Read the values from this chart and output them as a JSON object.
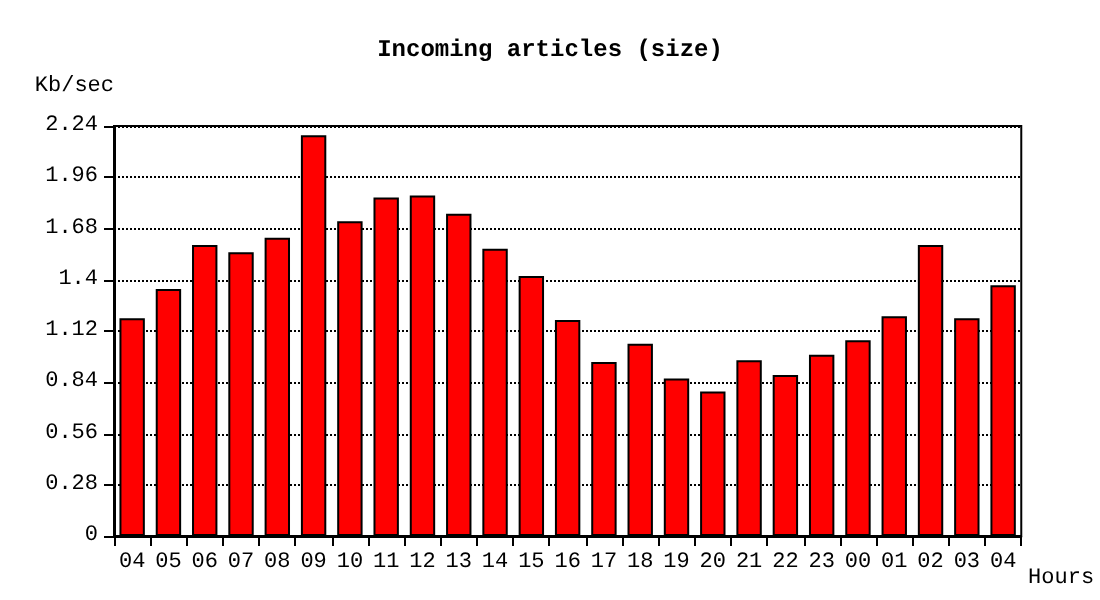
{
  "chart_data": {
    "type": "bar",
    "title": "Incoming articles (size)",
    "ylabel": "Kb/sec",
    "xlabel": "Hours",
    "categories": [
      "04",
      "05",
      "06",
      "07",
      "08",
      "09",
      "10",
      "11",
      "12",
      "13",
      "14",
      "15",
      "16",
      "17",
      "18",
      "19",
      "20",
      "21",
      "22",
      "23",
      "00",
      "01",
      "02",
      "03",
      "04"
    ],
    "series": [
      {
        "color": "#ff0000",
        "values": [
          1.19,
          1.35,
          1.59,
          1.55,
          1.63,
          2.19,
          1.72,
          1.85,
          1.86,
          1.76,
          1.57,
          1.42,
          1.18,
          0.95,
          1.05,
          0.86,
          0.79,
          0.96,
          0.88,
          0.99,
          1.07,
          1.2,
          1.59,
          1.19,
          1.37
        ]
      }
    ],
    "ylim": [
      0,
      2.24
    ],
    "yticks": [
      0,
      0.28,
      0.56,
      0.84,
      1.12,
      1.4,
      1.68,
      1.96,
      2.24
    ],
    "grid": "y"
  }
}
